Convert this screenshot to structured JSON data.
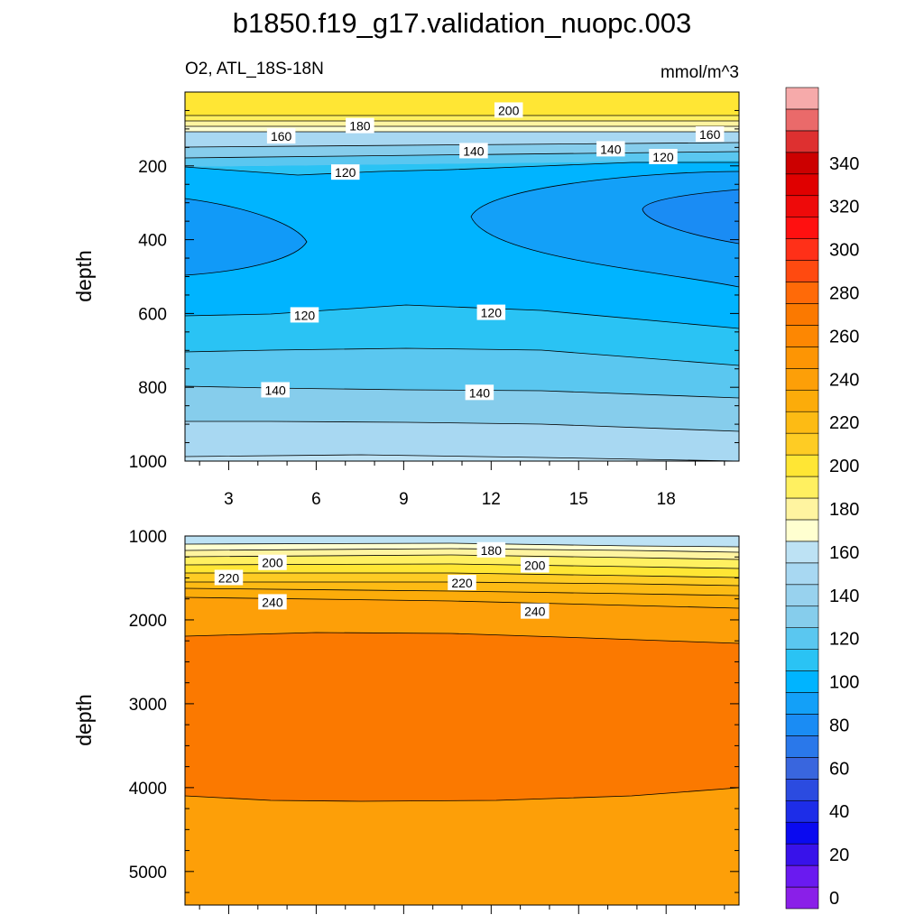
{
  "title": "b1850.f19_g17.validation_nuopc.003",
  "subtitle_left": "O2, ATL_18S-18N",
  "subtitle_right": "mmol/m^3",
  "chart_data": [
    {
      "type": "contour",
      "panel": "upper",
      "xlabel": "",
      "ylabel": "depth",
      "x_ticks": [
        3,
        6,
        9,
        12,
        15,
        18
      ],
      "xlim": [
        1.5,
        20.5
      ],
      "ylim": [
        0,
        1000
      ],
      "y_inverted": true,
      "y_ticks": [
        200,
        400,
        600,
        800,
        1000
      ],
      "contour_levels_shown": [
        {
          "value": 180,
          "y_left": 78,
          "y_right": 78
        },
        {
          "value": 160,
          "y_left": 110,
          "y_right": 110
        },
        {
          "value": 140,
          "y_left": 138,
          "y_right": 135
        },
        {
          "value": 120,
          "y_left": 195,
          "y_right": 160
        },
        {
          "value": 100,
          "y_left": 290,
          "y_right": 290
        },
        {
          "value": 120,
          "y_left": 600,
          "y_right": 640
        },
        {
          "value": 140,
          "y_left": 805,
          "y_right": 835
        }
      ],
      "contour_labels": [
        {
          "text": "200",
          "x": 12.6,
          "y": 50
        },
        {
          "text": "180",
          "x": 7.5,
          "y": 92
        },
        {
          "text": "160",
          "x": 4.8,
          "y": 120
        },
        {
          "text": "160",
          "x": 19.5,
          "y": 115
        },
        {
          "text": "140",
          "x": 11.4,
          "y": 160
        },
        {
          "text": "140",
          "x": 16.1,
          "y": 155
        },
        {
          "text": "120",
          "x": 7.0,
          "y": 218
        },
        {
          "text": "120",
          "x": 17.9,
          "y": 176
        },
        {
          "text": "120",
          "x": 5.6,
          "y": 605
        },
        {
          "text": "120",
          "x": 12.0,
          "y": 598
        },
        {
          "text": "140",
          "x": 4.6,
          "y": 808
        },
        {
          "text": "140",
          "x": 11.6,
          "y": 815
        }
      ]
    },
    {
      "type": "contour",
      "panel": "lower",
      "xlabel": "",
      "ylabel": "depth",
      "xlim": [
        1.5,
        20.5
      ],
      "ylim": [
        1000,
        5400
      ],
      "y_inverted": true,
      "y_ticks": [
        1000,
        2000,
        3000,
        4000,
        5000
      ],
      "contour_labels": [
        {
          "text": "180",
          "x": 12.0,
          "y": 1170
        },
        {
          "text": "200",
          "x": 4.5,
          "y": 1320
        },
        {
          "text": "200",
          "x": 13.5,
          "y": 1350
        },
        {
          "text": "220",
          "x": 3.0,
          "y": 1500
        },
        {
          "text": "220",
          "x": 11.0,
          "y": 1560
        },
        {
          "text": "240",
          "x": 4.5,
          "y": 1790
        },
        {
          "text": "240",
          "x": 13.5,
          "y": 1900
        }
      ]
    }
  ],
  "colorbar": {
    "levels": [
      0,
      20,
      40,
      60,
      80,
      100,
      120,
      140,
      160,
      180,
      200,
      220,
      240,
      260,
      280,
      300,
      320,
      340
    ],
    "tick_labels": [
      "0",
      "20",
      "40",
      "60",
      "80",
      "100",
      "120",
      "140",
      "160",
      "180",
      "200",
      "220",
      "240",
      "260",
      "280",
      "300",
      "320",
      "340"
    ],
    "colors": [
      "#8a1fe8",
      "#6a1af0",
      "#3812ea",
      "#0a0af0",
      "#1d2de8",
      "#2b4be0",
      "#3966de",
      "#2a78ea",
      "#1a8cf4",
      "#13a0f8",
      "#00b4ff",
      "#2ac3f4",
      "#5ac7f0",
      "#86cdec",
      "#98d2ee",
      "#a8d8f2",
      "#bde2f4",
      "#ffffd0",
      "#fff4a0",
      "#fff060",
      "#ffe634",
      "#fecc24",
      "#fdbb14",
      "#fcac0a",
      "#fd9f08",
      "#fd9504",
      "#fd8702",
      "#fb7900",
      "#ff6a08",
      "#ff4a10",
      "#ff3018",
      "#ff1010",
      "#ee0a0a",
      "#e00000",
      "#cc0000",
      "#de3030",
      "#ea6a6a",
      "#f6aaaa"
    ]
  }
}
